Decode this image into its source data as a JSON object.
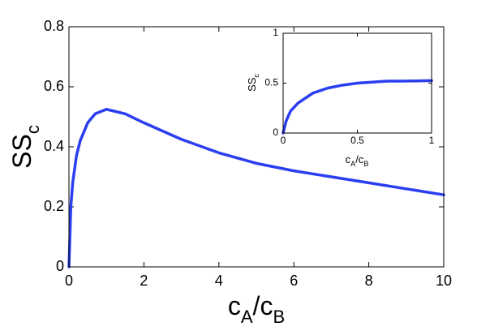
{
  "chart_data": [
    {
      "type": "line",
      "x_label": {
        "base": "c",
        "sub1": "A",
        "mid": "/c",
        "sub2": "B"
      },
      "y_label": {
        "base": "SS",
        "sub": "c"
      },
      "x": [
        0,
        0.05,
        0.1,
        0.2,
        0.3,
        0.5,
        0.7,
        1,
        1.5,
        2,
        3,
        4,
        5,
        6,
        7,
        8,
        9,
        10
      ],
      "series": [
        {
          "color": "#2b3ff0",
          "values": [
            0,
            0.2,
            0.28,
            0.37,
            0.42,
            0.48,
            0.51,
            0.525,
            0.51,
            0.48,
            0.425,
            0.38,
            0.345,
            0.32,
            0.3,
            0.28,
            0.26,
            0.24
          ]
        }
      ],
      "xlim": [
        0,
        10
      ],
      "xticks": [
        0,
        2,
        4,
        6,
        8,
        10
      ],
      "ylim": [
        0,
        0.8
      ],
      "yticks": [
        0,
        0.2,
        0.4,
        0.6,
        0.8
      ]
    },
    {
      "type": "line",
      "x_label": {
        "base": "c",
        "sub1": "A",
        "mid": "/c",
        "sub2": "B"
      },
      "y_label": {
        "base": "SS",
        "sub": "c"
      },
      "x": [
        0,
        0.02,
        0.05,
        0.1,
        0.2,
        0.3,
        0.4,
        0.5,
        0.6,
        0.7,
        0.8,
        1
      ],
      "series": [
        {
          "color": "#2b3ff0",
          "values": [
            0,
            0.12,
            0.22,
            0.3,
            0.4,
            0.45,
            0.48,
            0.5,
            0.51,
            0.52,
            0.52,
            0.525
          ]
        }
      ],
      "xlim": [
        0,
        1
      ],
      "xticks": [
        0,
        0.5,
        1
      ],
      "ylim": [
        0,
        1
      ],
      "yticks": [
        0,
        0.5,
        1
      ]
    }
  ]
}
